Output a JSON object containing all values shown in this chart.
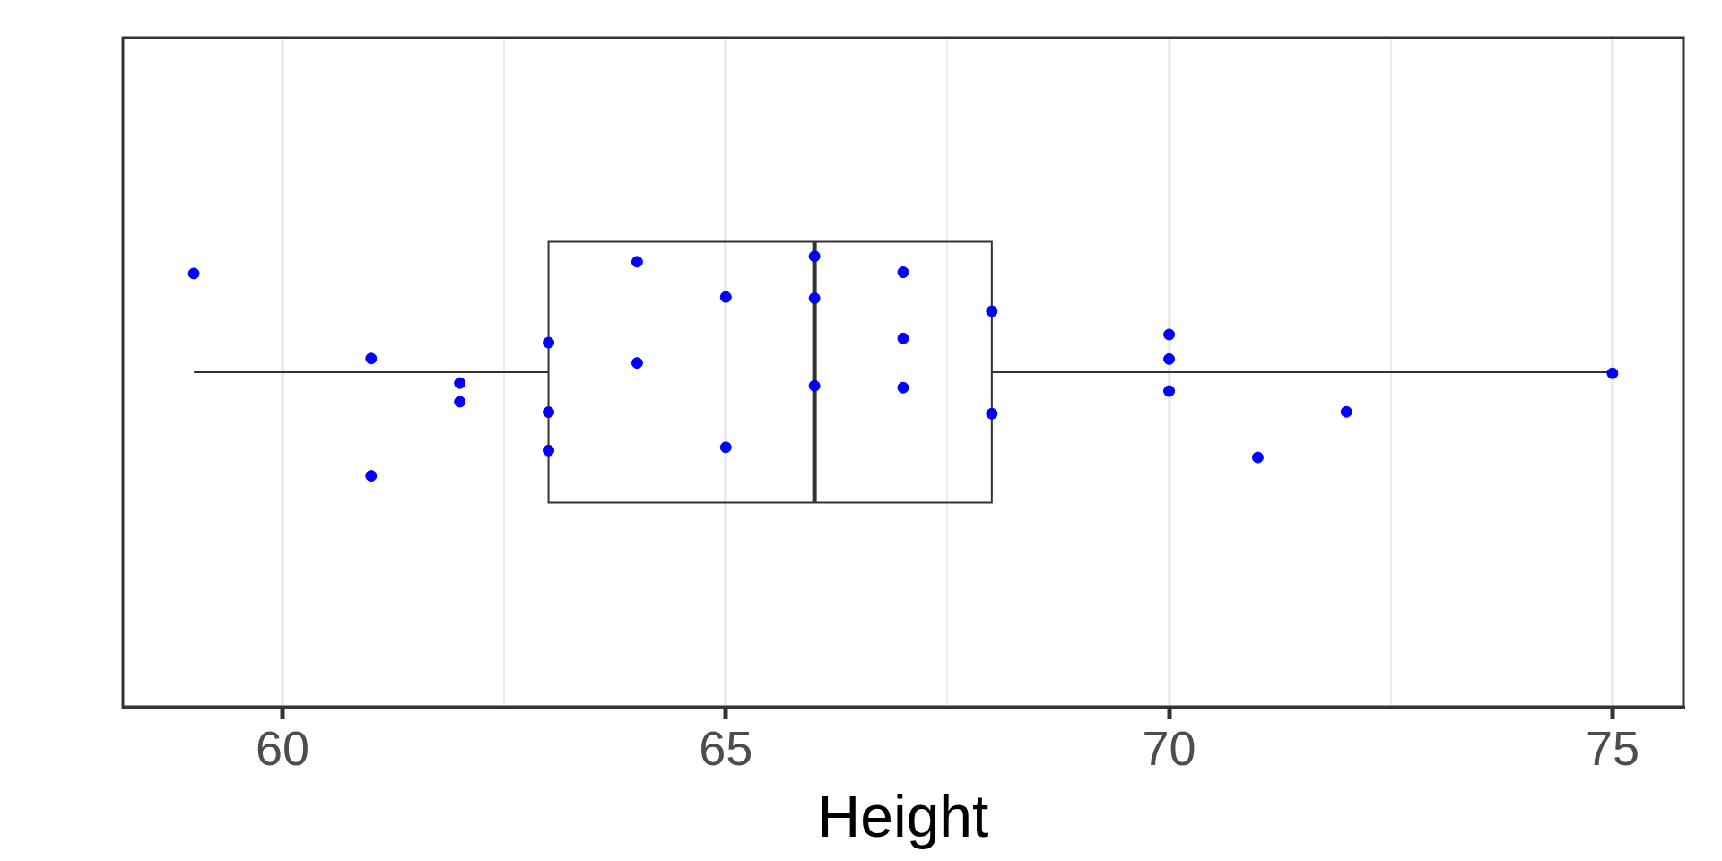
{
  "chart_data": {
    "type": "box",
    "orientation": "horizontal",
    "xlabel": "Height",
    "categories": [
      null
    ],
    "boxes": [
      {
        "low": 59,
        "q1": 63,
        "median": 66,
        "q3": 68,
        "high": 75
      }
    ],
    "color": "#333333",
    "xlim": [
      58.2,
      75.8
    ],
    "xticks": [
      60,
      {
        "value": 62.5,
        "label": null
      },
      65,
      {
        "value": 67.5,
        "label": null
      },
      70,
      {
        "value": 72.5,
        "label": null
      },
      75
    ],
    "grid": "x",
    "tick_labels": "x",
    "marker": "circle",
    "series": [
      {
        "type": "scatter",
        "color": "#0000ff",
        "x": [
          null,
          null,
          null,
          null,
          null,
          null,
          null,
          null,
          null,
          null,
          null,
          null,
          null,
          null,
          null,
          null,
          null,
          null,
          null,
          null,
          null,
          null,
          null,
          null,
          null,
          null
        ],
        "values": [
          59,
          61,
          61,
          62,
          62,
          63,
          63,
          63,
          64,
          64,
          65,
          65,
          66,
          66,
          66,
          67,
          67,
          67,
          68,
          68,
          70,
          70,
          70,
          71,
          72,
          75
        ]
      }
    ]
  }
}
